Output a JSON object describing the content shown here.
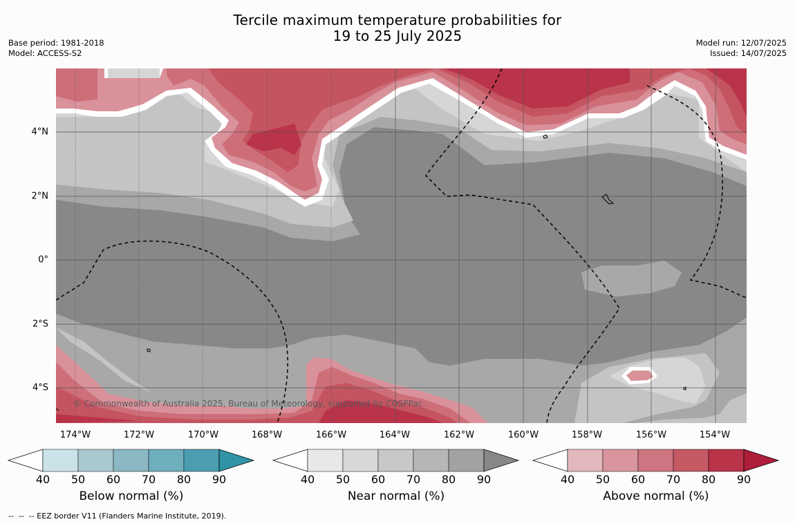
{
  "title": {
    "line1": "Tercile maximum temperature probabilities for",
    "line2": "19 to 25 July 2025"
  },
  "meta": {
    "base_period": "Base period: 1981-2018",
    "model": "Model: ACCESS-S2",
    "model_run": "Model run: 12/07/2025",
    "issued": "Issued: 14/07/2025"
  },
  "map": {
    "copyright": "© Commonwealth of Australia 2025, Bureau of Meteorology, supported by COSPPac",
    "lat_labels": [
      "4°N",
      "2°N",
      "0°",
      "2°S",
      "4°S"
    ],
    "lon_labels": [
      "174°W",
      "172°W",
      "170°W",
      "168°W",
      "166°W",
      "164°W",
      "162°W",
      "160°W",
      "158°W",
      "156°W",
      "154°W"
    ],
    "colors": {
      "near_60": "#d6d6d6",
      "near_70": "#c4c4c4",
      "near_80": "#a8a8a8",
      "near_90": "#888888",
      "above_50": "#d9919a",
      "above_60": "#cd6e79",
      "above_70": "#c45460",
      "above_80": "#b9334a",
      "white": "#ffffff"
    }
  },
  "colorbars": [
    {
      "title": "Below normal (%)",
      "ticks": [
        "40",
        "50",
        "60",
        "70",
        "80",
        "90"
      ],
      "colors": [
        "#ffffff",
        "#cbe2e8",
        "#a9c8cf",
        "#8cb8c4",
        "#6eaebd",
        "#4a9eb0",
        "#3193a6"
      ]
    },
    {
      "title": "Near normal (%)",
      "ticks": [
        "40",
        "50",
        "60",
        "70",
        "80",
        "90"
      ],
      "colors": [
        "#ffffff",
        "#e8e8e8",
        "#d8d8d8",
        "#c8c8c8",
        "#b6b6b6",
        "#a2a2a2",
        "#888888"
      ]
    },
    {
      "title": "Above normal (%)",
      "ticks": [
        "40",
        "50",
        "60",
        "70",
        "80",
        "90"
      ],
      "colors": [
        "#ffffff",
        "#e3b8bd",
        "#d9959d",
        "#cd7580",
        "#c55964",
        "#b93349",
        "#ae1d3a"
      ]
    }
  ],
  "footer": "--  --  -- EEZ border V11 (Flanders Marine Institute, 2019)."
}
